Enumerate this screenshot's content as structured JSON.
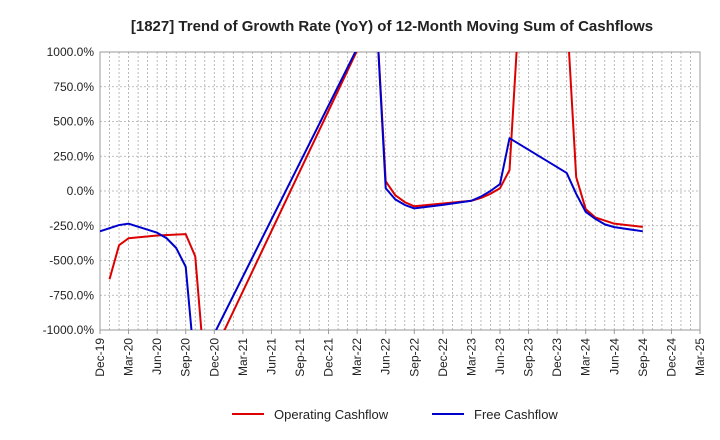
{
  "chart_data": {
    "type": "line",
    "title": "[1827]  Trend of Growth Rate (YoY) of 12-Month Moving Sum of Cashflows",
    "xlabel": "",
    "ylabel": "",
    "ylim": [
      -1000,
      1000
    ],
    "y_ticks": [
      "1000.0%",
      "750.0%",
      "500.0%",
      "250.0%",
      "0.0%",
      "-250.0%",
      "-500.0%",
      "-750.0%",
      "-1000.0%"
    ],
    "x_ticks": [
      "Dec-19",
      "Mar-20",
      "Jun-20",
      "Sep-20",
      "Dec-20",
      "Mar-21",
      "Jun-21",
      "Sep-21",
      "Dec-21",
      "Mar-22",
      "Jun-22",
      "Sep-22",
      "Dec-22",
      "Mar-23",
      "Jun-23",
      "Sep-23",
      "Dec-23",
      "Mar-24",
      "Jun-24",
      "Sep-24",
      "Dec-24",
      "Mar-25"
    ],
    "grid": true,
    "legend_position": "bottom",
    "series": [
      {
        "name": "Operating Cashflow",
        "color": "#dd0000",
        "points": [
          [
            "Jan-20",
            -635
          ],
          [
            "Feb-20",
            -390
          ],
          [
            "Mar-20",
            -340
          ],
          [
            "Jun-20",
            -320
          ],
          [
            "Sep-20",
            -310
          ],
          [
            "Oct-20",
            -470
          ],
          [
            "Nov-20",
            -1300
          ],
          [
            "May-22",
            1300
          ],
          [
            "Jun-22",
            70
          ],
          [
            "Jul-22",
            -30
          ],
          [
            "Aug-22",
            -80
          ],
          [
            "Sep-22",
            -110
          ],
          [
            "Dec-22",
            -90
          ],
          [
            "Mar-23",
            -70
          ],
          [
            "Apr-23",
            -50
          ],
          [
            "May-23",
            -20
          ],
          [
            "Jun-23",
            20
          ],
          [
            "Jul-23",
            150
          ],
          [
            "Aug-23",
            1300
          ],
          [
            "Jan-24",
            1300
          ],
          [
            "Feb-24",
            100
          ],
          [
            "Mar-24",
            -130
          ],
          [
            "Apr-24",
            -190
          ],
          [
            "Jun-24",
            -235
          ],
          [
            "Sep-24",
            -258
          ]
        ]
      },
      {
        "name": "Free Cashflow",
        "color": "#0000cc",
        "points": [
          [
            "Dec-19",
            -290
          ],
          [
            "Feb-20",
            -245
          ],
          [
            "Mar-20",
            -235
          ],
          [
            "Jun-20",
            -300
          ],
          [
            "Jul-20",
            -340
          ],
          [
            "Aug-20",
            -410
          ],
          [
            "Sep-20",
            -545
          ],
          [
            "Oct-20",
            -1300
          ],
          [
            "May-22",
            1300
          ],
          [
            "Jun-22",
            20
          ],
          [
            "Jul-22",
            -60
          ],
          [
            "Aug-22",
            -100
          ],
          [
            "Sep-22",
            -125
          ],
          [
            "Dec-22",
            -100
          ],
          [
            "Mar-23",
            -70
          ],
          [
            "Apr-23",
            -40
          ],
          [
            "May-23",
            0
          ],
          [
            "Jun-23",
            50
          ],
          [
            "Jul-23",
            380
          ],
          [
            "Jan-24",
            130
          ],
          [
            "Feb-24",
            -20
          ],
          [
            "Mar-24",
            -150
          ],
          [
            "Apr-24",
            -200
          ],
          [
            "May-24",
            -240
          ],
          [
            "Jun-24",
            -260
          ],
          [
            "Sep-24",
            -290
          ]
        ]
      }
    ]
  }
}
